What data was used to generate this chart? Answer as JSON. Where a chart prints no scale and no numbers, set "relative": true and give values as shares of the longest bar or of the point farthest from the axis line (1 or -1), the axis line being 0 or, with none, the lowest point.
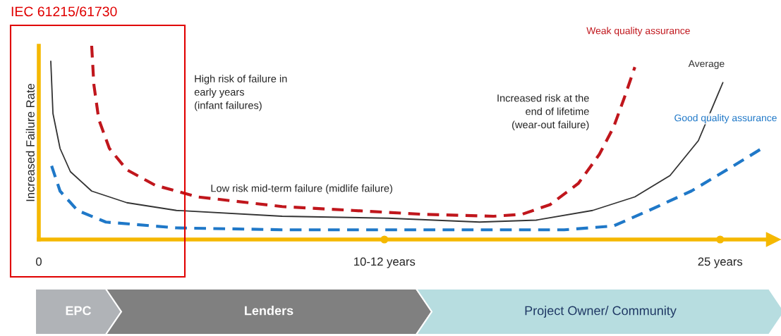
{
  "chart_data": {
    "type": "line",
    "relative": true,
    "ylabel": "Increased Failure Rate",
    "xlim": [
      0,
      27
    ],
    "xticks": [
      0,
      {
        "value": 12.68,
        "label": "10-12 years"
      },
      {
        "value": 25,
        "label": "25 years"
      }
    ],
    "legend": false,
    "grid": false,
    "marker": "none",
    "series": [
      {
        "name": "Weak quality assurance",
        "color": "#c0161c",
        "line_style": "dashed",
        "x": [
          1.94,
          2.02,
          2.2,
          2.59,
          3.23,
          4.27,
          5.82,
          8.93,
          11.52,
          14.1,
          16.69,
          17.73,
          18.76,
          19.8,
          20.57,
          21.09,
          21.48,
          21.87
        ],
        "values": [
          1.0,
          0.8,
          0.62,
          0.47,
          0.36,
          0.28,
          0.22,
          0.17,
          0.15,
          0.13,
          0.12,
          0.13,
          0.18,
          0.29,
          0.44,
          0.58,
          0.73,
          0.89
        ]
      },
      {
        "name": "Average",
        "color": "#333333",
        "line_style": "solid",
        "x": [
          0.44,
          0.52,
          0.78,
          1.16,
          1.94,
          3.23,
          5.05,
          8.93,
          12.81,
          16.17,
          18.25,
          20.32,
          21.87,
          23.16,
          24.2,
          25.1
        ],
        "values": [
          0.92,
          0.65,
          0.47,
          0.35,
          0.25,
          0.19,
          0.15,
          0.12,
          0.11,
          0.09,
          0.1,
          0.15,
          0.22,
          0.33,
          0.51,
          0.81
        ]
      },
      {
        "name": "Good quality assurance",
        "color": "#1f78c8",
        "line_style": "dashed",
        "x": [
          0.47,
          0.78,
          1.42,
          2.46,
          5.05,
          8.93,
          14.1,
          19.28,
          21.09,
          22.39,
          23.94,
          25.49,
          26.53
        ],
        "values": [
          0.38,
          0.25,
          0.15,
          0.09,
          0.06,
          0.05,
          0.05,
          0.05,
          0.07,
          0.15,
          0.25,
          0.38,
          0.47
        ]
      }
    ],
    "annotations": [
      "IEC 61215/61730",
      "High risk of failure in\nearly years\n(infant failures)",
      "Low risk mid-term failure (midlife failure)",
      "Increased risk at the\nend of lifetime\n(wear-out failure)",
      "EPC",
      "Lenders",
      "Project Owner/ Community"
    ]
  }
}
